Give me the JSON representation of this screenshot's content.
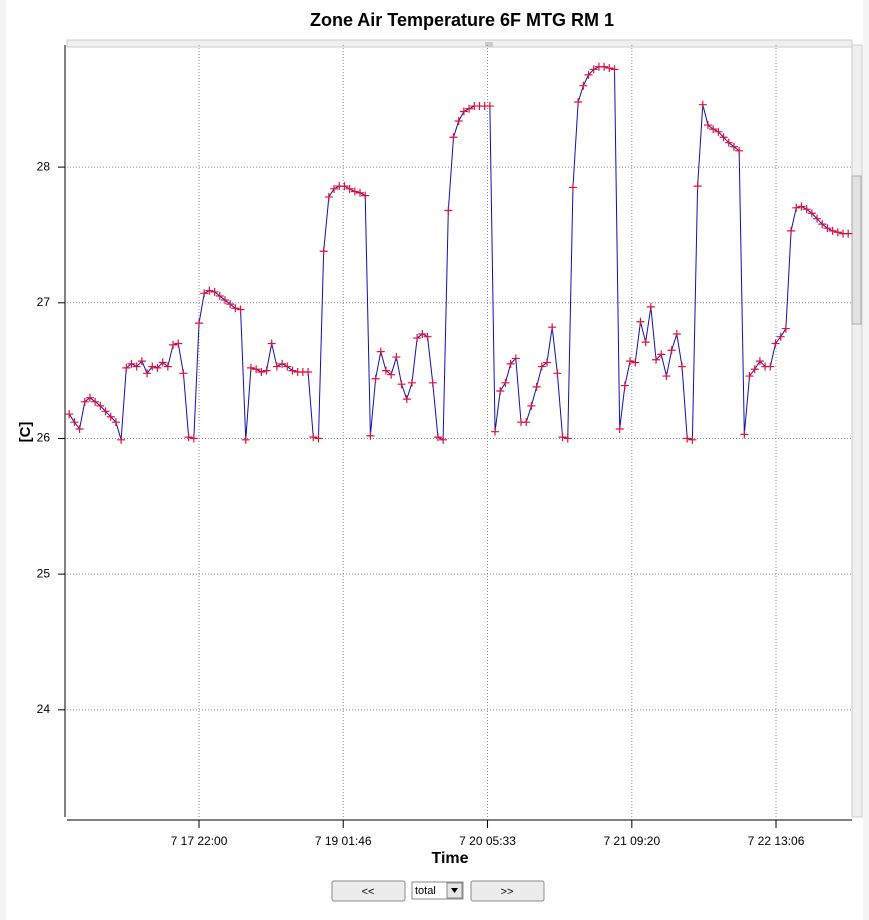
{
  "chart_data": {
    "type": "line",
    "title": "Zone Air Temperature  6F MTG RM 1",
    "x_label": "Time",
    "y_label": "[C]",
    "x": [
      21,
      22,
      23,
      24,
      25,
      26,
      27,
      28,
      29,
      30,
      31,
      32,
      33,
      34,
      35,
      36,
      37,
      38,
      39,
      40,
      41,
      42,
      43,
      44,
      45,
      46,
      47,
      48,
      49,
      50,
      51,
      52,
      53,
      54,
      55,
      56,
      57,
      58,
      59,
      60,
      61,
      62,
      63,
      64,
      65,
      66,
      67,
      68,
      69,
      70,
      71,
      72,
      73,
      74,
      75,
      76,
      77,
      78,
      79,
      80,
      81,
      82,
      83,
      84,
      85,
      86,
      87,
      88,
      89,
      90,
      91,
      92,
      93,
      94,
      95,
      96,
      97,
      98,
      99,
      100,
      101,
      102,
      103,
      104,
      105,
      106,
      107,
      108,
      109,
      110,
      111,
      112,
      113,
      114,
      115,
      116,
      117,
      118,
      119,
      120,
      121,
      122,
      123,
      124,
      125,
      126,
      127,
      128,
      129,
      130,
      131,
      132,
      133,
      134,
      135,
      136,
      137,
      138,
      139,
      140,
      141,
      142,
      143,
      144,
      145,
      146,
      147,
      148,
      149,
      150,
      151,
      152,
      153,
      154,
      155,
      156,
      157,
      158,
      159,
      160,
      161,
      162,
      163,
      164,
      165,
      166,
      167,
      168,
      169,
      170,
      171
    ],
    "values": [
      26.18,
      26.12,
      26.07,
      26.27,
      26.3,
      26.27,
      26.24,
      26.2,
      26.16,
      26.12,
      25.99,
      26.52,
      26.55,
      26.53,
      26.57,
      26.48,
      26.53,
      26.52,
      26.56,
      26.53,
      26.69,
      26.7,
      26.48,
      26.01,
      26.0,
      26.85,
      27.07,
      27.09,
      27.08,
      27.05,
      27.02,
      26.99,
      26.96,
      26.95,
      25.99,
      26.52,
      26.51,
      26.49,
      26.5,
      26.7,
      26.53,
      26.55,
      26.53,
      26.5,
      26.49,
      26.49,
      26.49,
      26.01,
      26.0,
      27.38,
      27.78,
      27.84,
      27.86,
      27.86,
      27.84,
      27.82,
      27.81,
      27.79,
      26.02,
      26.44,
      26.64,
      26.5,
      26.47,
      26.6,
      26.4,
      26.29,
      26.41,
      26.74,
      26.77,
      26.75,
      26.41,
      26.01,
      25.99,
      27.68,
      28.22,
      28.34,
      28.41,
      28.43,
      28.45,
      28.45,
      28.45,
      28.45,
      26.05,
      26.35,
      26.41,
      26.55,
      26.59,
      26.12,
      26.12,
      26.24,
      26.38,
      26.53,
      26.56,
      26.82,
      26.48,
      26.01,
      26.0,
      27.85,
      28.48,
      28.6,
      28.68,
      28.72,
      28.74,
      28.74,
      28.73,
      28.72,
      26.07,
      26.39,
      26.57,
      26.56,
      26.86,
      26.71,
      26.97,
      26.58,
      26.62,
      26.46,
      26.65,
      26.77,
      26.53,
      26.0,
      25.99,
      27.86,
      28.46,
      28.31,
      28.28,
      28.26,
      28.22,
      28.18,
      28.15,
      28.12,
      26.03,
      26.46,
      26.51,
      26.57,
      26.53,
      26.53,
      26.7,
      26.75,
      26.81,
      27.53,
      27.7,
      27.71,
      27.69,
      27.66,
      27.62,
      27.58,
      27.55,
      27.53,
      27.52,
      27.51,
      27.51
    ],
    "color": "#1010b0",
    "marker_color": "#e0103a",
    "xlim": [
      20.58,
      171.73
    ],
    "ylim": [
      23.21,
      28.9
    ],
    "xticks": [
      {
        "value": 46,
        "label": "7 17 22:00"
      },
      {
        "value": 73.7667,
        "label": "7 19 01:46"
      },
      {
        "value": 101.55,
        "label": "7 20 05:33"
      },
      {
        "value": 129.3333,
        "label": "7 21 09:20"
      },
      {
        "value": 157.1,
        "label": "7 22 13:06"
      }
    ],
    "yticks": [
      24,
      25,
      26,
      27,
      28
    ],
    "grid": true
  },
  "controls": {
    "prev": "<<",
    "range": "total",
    "next": ">>"
  }
}
